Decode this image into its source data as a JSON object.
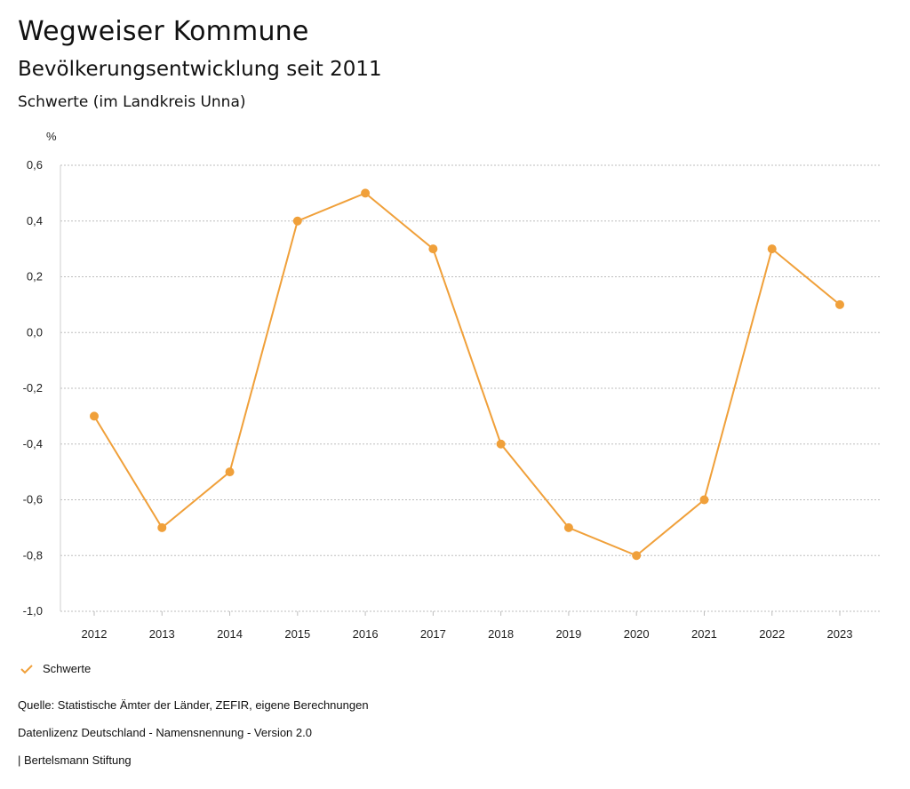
{
  "header": {
    "title": "Wegweiser Kommune",
    "subtitle": "Bevölkerungsentwicklung seit 2011",
    "region": "Schwerte (im Landkreis Unna)"
  },
  "legend": {
    "label": "Schwerte",
    "color": "#f0a03a"
  },
  "footer": {
    "source": "Quelle: Statistische Ämter der Länder, ZEFIR, eigene Berechnungen",
    "license": "Datenlizenz Deutschland - Namensnennung - Version 2.0",
    "publisher": "| Bertelsmann Stiftung"
  },
  "chart_data": {
    "type": "line",
    "unit_label": "%",
    "x": [
      "2012",
      "2013",
      "2014",
      "2015",
      "2016",
      "2017",
      "2018",
      "2019",
      "2020",
      "2021",
      "2022",
      "2023"
    ],
    "series": [
      {
        "name": "Schwerte",
        "color": "#f0a03a",
        "values": [
          -0.3,
          -0.7,
          -0.5,
          0.4,
          0.5,
          0.3,
          -0.4,
          -0.7,
          -0.8,
          -0.6,
          0.3,
          0.1
        ]
      }
    ],
    "ylim": [
      -1.0,
      0.6
    ],
    "yticks": [
      "0,6",
      "0,4",
      "0,2",
      "0,0",
      "-0,2",
      "-0,4",
      "-0,6",
      "-0,8",
      "-1,0"
    ],
    "grid": true,
    "legend_position": "bottom-left"
  }
}
